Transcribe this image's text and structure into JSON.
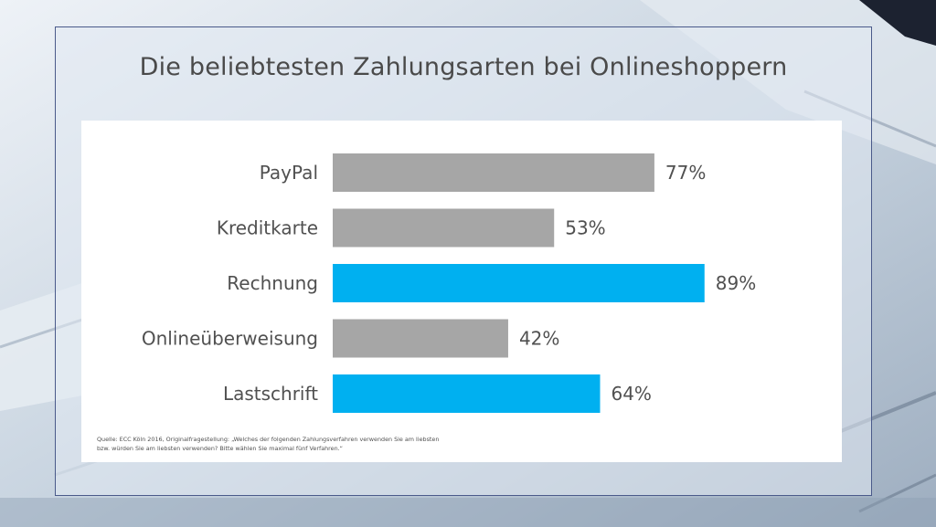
{
  "title": "Die beliebtesten Zahlungsarten bei Onlineshoppern",
  "source": "Quelle: ECC Köln 2016, Originalfragestellung: „Welches der folgenden Zahlungsverfahren verwenden Sie am liebsten bzw. würden Sie am liebsten verwenden? Bitte wählen Sie maximal fünf Verfahren.“",
  "colors": {
    "default_bar": "#a6a6a6",
    "highlight_bar": "#00b0f0"
  },
  "chart_data": {
    "type": "bar",
    "orientation": "horizontal",
    "categories": [
      "PayPal",
      "Kreditkarte",
      "Rechnung",
      "Onlineüberweisung",
      "Lastschrift"
    ],
    "values": [
      77,
      53,
      89,
      42,
      64
    ],
    "value_labels": [
      "77%",
      "53%",
      "89%",
      "42%",
      "64%"
    ],
    "highlighted": [
      false,
      false,
      true,
      false,
      true
    ],
    "xlim": [
      0,
      100
    ],
    "grid": false,
    "legend": "none",
    "title": "Die beliebtesten Zahlungsarten bei Onlineshoppern"
  }
}
